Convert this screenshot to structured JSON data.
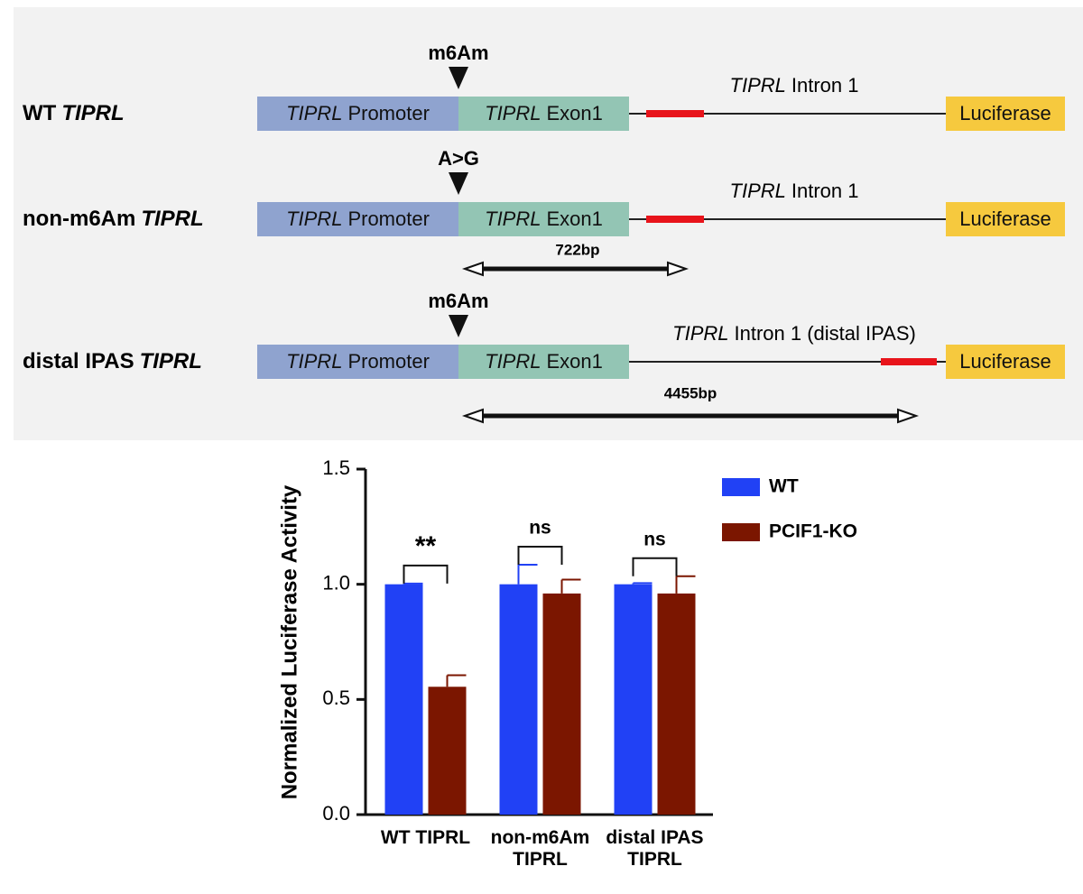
{
  "diagram": {
    "constructs": [
      {
        "name": [
          "WT",
          "TIPRL"
        ],
        "site": "m6Am",
        "promoter": [
          "TIPRL",
          "Promoter"
        ],
        "exon": [
          "TIPRL",
          "Exon1"
        ],
        "intron": [
          "TIPRL",
          "Intron 1"
        ],
        "reporter": "Luciferase"
      },
      {
        "name": [
          "non-m6Am",
          "TIPRL"
        ],
        "site": "A>G",
        "promoter": [
          "TIPRL",
          "Promoter"
        ],
        "exon": [
          "TIPRL",
          "Exon1"
        ],
        "intron": [
          "TIPRL",
          "Intron 1"
        ],
        "reporter": "Luciferase",
        "distance": "722bp"
      },
      {
        "name": [
          "distal IPAS",
          "TIPRL"
        ],
        "site": "m6Am",
        "promoter": [
          "TIPRL",
          "Promoter"
        ],
        "exon": [
          "TIPRL",
          "Exon1"
        ],
        "intron": [
          "TIPRL",
          "Intron 1 (distal IPAS)"
        ],
        "reporter": "Luciferase",
        "distance": "4455bp"
      }
    ]
  },
  "chart_data": {
    "type": "bar",
    "y_label": "Normalized Luciferase Activity",
    "categories": [
      "WT TIPRL",
      "non-m6Am TIPRL",
      "distal IPAS TIPRL"
    ],
    "series": [
      {
        "name": "WT",
        "color": "#2141f5",
        "values": [
          1.0,
          1.0,
          1.0
        ],
        "errors": [
          0.003,
          0.085,
          0.005
        ]
      },
      {
        "name": "PCIF1-KO",
        "color": "#7b1600",
        "values": [
          0.555,
          0.96,
          0.96
        ],
        "errors": [
          0.05,
          0.06,
          0.075
        ]
      }
    ],
    "annotations": [
      "**",
      "ns",
      "ns"
    ],
    "ylim": [
      0,
      1.5
    ],
    "yticks": [
      {
        "value": 0,
        "label": "0.0"
      },
      {
        "value": 0.5,
        "label": "0.5"
      },
      {
        "value": 1,
        "label": "1.0"
      },
      {
        "value": 1.5,
        "label": "1.5"
      }
    ],
    "legend": "upper right"
  }
}
